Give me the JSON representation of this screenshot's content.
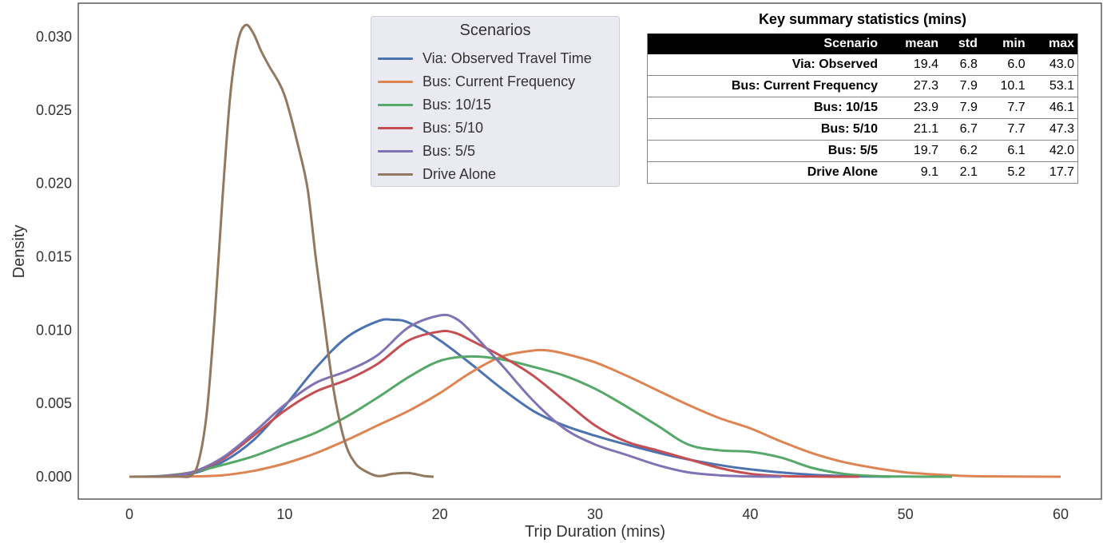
{
  "chart_data": {
    "type": "line",
    "title": "",
    "xlabel": "Trip Duration (mins)",
    "ylabel": "Density",
    "xlim": [
      -3,
      63
    ],
    "ylim": [
      -0.0015,
      0.0325
    ],
    "xticks": [
      "0",
      "10",
      "20",
      "30",
      "40",
      "50",
      "60"
    ],
    "xtick_values": [
      0,
      10,
      20,
      30,
      40,
      50,
      60
    ],
    "yticks": [
      "0.000",
      "0.005",
      "0.010",
      "0.015",
      "0.020",
      "0.025",
      "0.030"
    ],
    "ytick_values": [
      0,
      0.005,
      0.01,
      0.015,
      0.02,
      0.025,
      0.03
    ],
    "grid": false,
    "legend_position": "upper-center",
    "legend_title": "Scenarios",
    "series": [
      {
        "name": "Via: Observed Travel Time",
        "color": "#4c72b0",
        "x": [
          0,
          2,
          4,
          6,
          8,
          10,
          12,
          14,
          16,
          17,
          18,
          20,
          22,
          24,
          26,
          28,
          30,
          32,
          35,
          38,
          40,
          43,
          46,
          49
        ],
        "y": [
          0,
          2e-05,
          0.0002,
          0.001,
          0.0025,
          0.0048,
          0.0074,
          0.0095,
          0.0106,
          0.0107,
          0.0105,
          0.0093,
          0.0077,
          0.006,
          0.0045,
          0.0035,
          0.0028,
          0.0022,
          0.0014,
          0.0008,
          0.0005,
          0.0002,
          5e-05,
          0
        ]
      },
      {
        "name": "Bus: Current Frequency",
        "color": "#dd8452",
        "x": [
          0,
          4,
          6,
          8,
          10,
          12,
          14,
          16,
          18,
          20,
          22,
          24,
          26,
          27,
          28,
          30,
          32,
          34,
          36,
          38,
          40,
          42,
          44,
          46,
          48,
          50,
          52,
          54,
          56,
          60
        ],
        "y": [
          0,
          2e-05,
          0.0001,
          0.0004,
          0.0009,
          0.0016,
          0.0025,
          0.0035,
          0.0045,
          0.0057,
          0.0071,
          0.0082,
          0.0086,
          0.0086,
          0.0084,
          0.0078,
          0.0069,
          0.0059,
          0.0049,
          0.004,
          0.0033,
          0.0024,
          0.0016,
          0.001,
          0.0006,
          0.0003,
          0.00015,
          5e-05,
          2e-05,
          0
        ]
      },
      {
        "name": "Bus: 10/15",
        "color": "#55a868",
        "x": [
          0,
          2,
          4,
          6,
          8,
          10,
          12,
          14,
          16,
          18,
          20,
          22,
          24,
          26,
          28,
          30,
          32,
          34,
          36,
          38,
          40,
          42,
          44,
          46,
          48,
          50,
          53
        ],
        "y": [
          0,
          5e-05,
          0.0003,
          0.0008,
          0.0014,
          0.0022,
          0.003,
          0.0041,
          0.0054,
          0.0068,
          0.0079,
          0.0082,
          0.008,
          0.0075,
          0.0069,
          0.006,
          0.0048,
          0.0035,
          0.0022,
          0.0018,
          0.0017,
          0.0013,
          0.0006,
          0.0002,
          5e-05,
          1e-05,
          0
        ]
      },
      {
        "name": "Bus: 5/10",
        "color": "#c44e52",
        "x": [
          0,
          2,
          4,
          6,
          8,
          10,
          12,
          14,
          16,
          18,
          20,
          21,
          22,
          24,
          26,
          28,
          30,
          32,
          34,
          36,
          38,
          40,
          42,
          44,
          47
        ],
        "y": [
          0,
          3e-05,
          0.0003,
          0.0012,
          0.0028,
          0.0045,
          0.0058,
          0.0066,
          0.0077,
          0.0093,
          0.0099,
          0.0098,
          0.0093,
          0.0082,
          0.0069,
          0.0052,
          0.0035,
          0.0024,
          0.0018,
          0.0012,
          0.0006,
          0.0002,
          5e-05,
          1e-05,
          0
        ]
      },
      {
        "name": "Bus: 5/5",
        "color": "#8172b3",
        "x": [
          0,
          2,
          4,
          6,
          8,
          10,
          12,
          14,
          16,
          18,
          20,
          21,
          22,
          24,
          26,
          28,
          30,
          32,
          34,
          36,
          38,
          40,
          42
        ],
        "y": [
          0,
          3e-05,
          0.0003,
          0.0013,
          0.003,
          0.0049,
          0.0064,
          0.0072,
          0.0083,
          0.0102,
          0.011,
          0.0108,
          0.0099,
          0.0076,
          0.0052,
          0.0033,
          0.0022,
          0.0015,
          0.0008,
          0.0003,
          0.0001,
          2e-05,
          0
        ]
      },
      {
        "name": "Drive Alone",
        "color": "#937860",
        "x": [
          0,
          3,
          4,
          4.5,
          5,
          5.5,
          6,
          6.5,
          7,
          7.5,
          8,
          8.5,
          9,
          10,
          11,
          11.5,
          12,
          12.5,
          13,
          13.5,
          14,
          14.5,
          15,
          16,
          17,
          18,
          19,
          19.6
        ],
        "y": [
          0,
          1e-05,
          0.0001,
          0.0012,
          0.0045,
          0.011,
          0.019,
          0.026,
          0.0297,
          0.0308,
          0.0302,
          0.029,
          0.028,
          0.026,
          0.022,
          0.0195,
          0.015,
          0.011,
          0.007,
          0.004,
          0.002,
          0.001,
          0.0005,
          5e-05,
          0.0002,
          0.00025,
          5e-05,
          0
        ]
      }
    ]
  },
  "table": {
    "title": "Key summary statistics (mins)",
    "headers": [
      "Scenario",
      "mean",
      "std",
      "min",
      "max"
    ],
    "rows": [
      [
        "Via: Observed",
        "19.4",
        "6.8",
        "6.0",
        "43.0"
      ],
      [
        "Bus: Current Frequency",
        "27.3",
        "7.9",
        "10.1",
        "53.1"
      ],
      [
        "Bus: 10/15",
        "23.9",
        "7.9",
        "7.7",
        "46.1"
      ],
      [
        "Bus: 5/10",
        "21.1",
        "6.7",
        "7.7",
        "47.3"
      ],
      [
        "Bus: 5/5",
        "19.7",
        "6.2",
        "6.1",
        "42.0"
      ],
      [
        "Drive Alone",
        "9.1",
        "2.1",
        "5.2",
        "17.7"
      ]
    ]
  }
}
